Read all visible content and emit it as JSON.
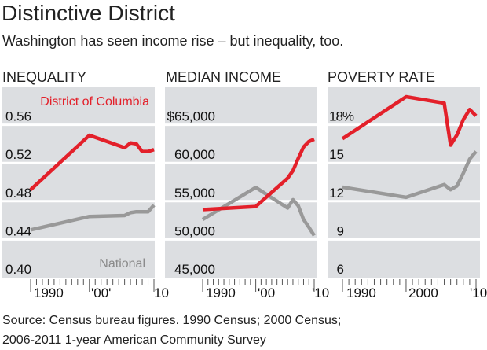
{
  "title": "Distinctive District",
  "subtitle": "Washington has seen income rise – but inequality, too.",
  "source": {
    "line1": "Source:  Census bureau figures. 1990 Census; 2000 Census;",
    "line2": "2006-2011 1-year American Community Survey"
  },
  "colors": {
    "dc": "#e3202a",
    "national": "#999999",
    "panel_bg": "#dcdee1",
    "gridline": "#ffffff"
  },
  "chart_data": [
    {
      "type": "line",
      "title": "INEQUALITY",
      "yticks": [
        0.56,
        0.52,
        0.48,
        0.44,
        0.4
      ],
      "ytick_labels": [
        "0.56",
        "0.52",
        "0.48",
        "0.44",
        "0.40"
      ],
      "ylim": [
        0.4,
        0.6
      ],
      "xlim": [
        1990,
        2011
      ],
      "xtick_labels": [
        "1990",
        "'00'",
        "10"
      ],
      "x": [
        1990,
        2000,
        2006,
        2007,
        2008,
        2009,
        2010,
        2011
      ],
      "series": [
        {
          "name": "District of Columbia",
          "color": "#e3202a",
          "values": [
            0.492,
            0.549,
            0.536,
            0.541,
            0.54,
            0.532,
            0.532,
            0.534
          ]
        },
        {
          "name": "National",
          "color": "#999999",
          "values": [
            0.45,
            0.464,
            0.465,
            0.468,
            0.469,
            0.469,
            0.469,
            0.476
          ]
        }
      ],
      "grid": true
    },
    {
      "type": "line",
      "title": "MEDIAN INCOME",
      "yticks": [
        65000,
        60000,
        55000,
        50000,
        45000
      ],
      "ytick_labels": [
        "$65,000",
        "60,000",
        "55,000",
        "50,000",
        "45,000"
      ],
      "ylim": [
        45000,
        70000
      ],
      "xlim": [
        1990,
        2011
      ],
      "xtick_labels": [
        "1990",
        "'00",
        "'10"
      ],
      "x": [
        1990,
        2000,
        2006,
        2007,
        2008,
        2009,
        2010,
        2011
      ],
      "series": [
        {
          "color": "#e3202a",
          "values": [
            53900,
            54300,
            58000,
            59000,
            60600,
            62100,
            62800,
            63100
          ]
        },
        {
          "color": "#999999",
          "values": [
            52600,
            56800,
            54100,
            55200,
            54400,
            52600,
            51600,
            50500
          ]
        }
      ],
      "grid": true
    },
    {
      "type": "line",
      "title": "POVERTY RATE",
      "yticks": [
        18,
        15,
        12,
        9,
        6
      ],
      "ytick_labels": [
        "18%",
        "15",
        "12",
        "9",
        "6"
      ],
      "ylim": [
        6,
        21
      ],
      "xlim": [
        1990,
        2011
      ],
      "xtick_labels": [
        "1990",
        "2000",
        "'10"
      ],
      "x": [
        1990,
        2000,
        2006,
        2007,
        2008,
        2009,
        2010,
        2011
      ],
      "series": [
        {
          "color": "#e3202a",
          "values": [
            16.9,
            20.2,
            19.7,
            16.4,
            17.2,
            18.4,
            19.2,
            18.7
          ]
        },
        {
          "color": "#999999",
          "values": [
            13.1,
            12.3,
            13.3,
            12.9,
            13.2,
            14.2,
            15.3,
            15.9
          ]
        }
      ],
      "grid": true
    }
  ]
}
